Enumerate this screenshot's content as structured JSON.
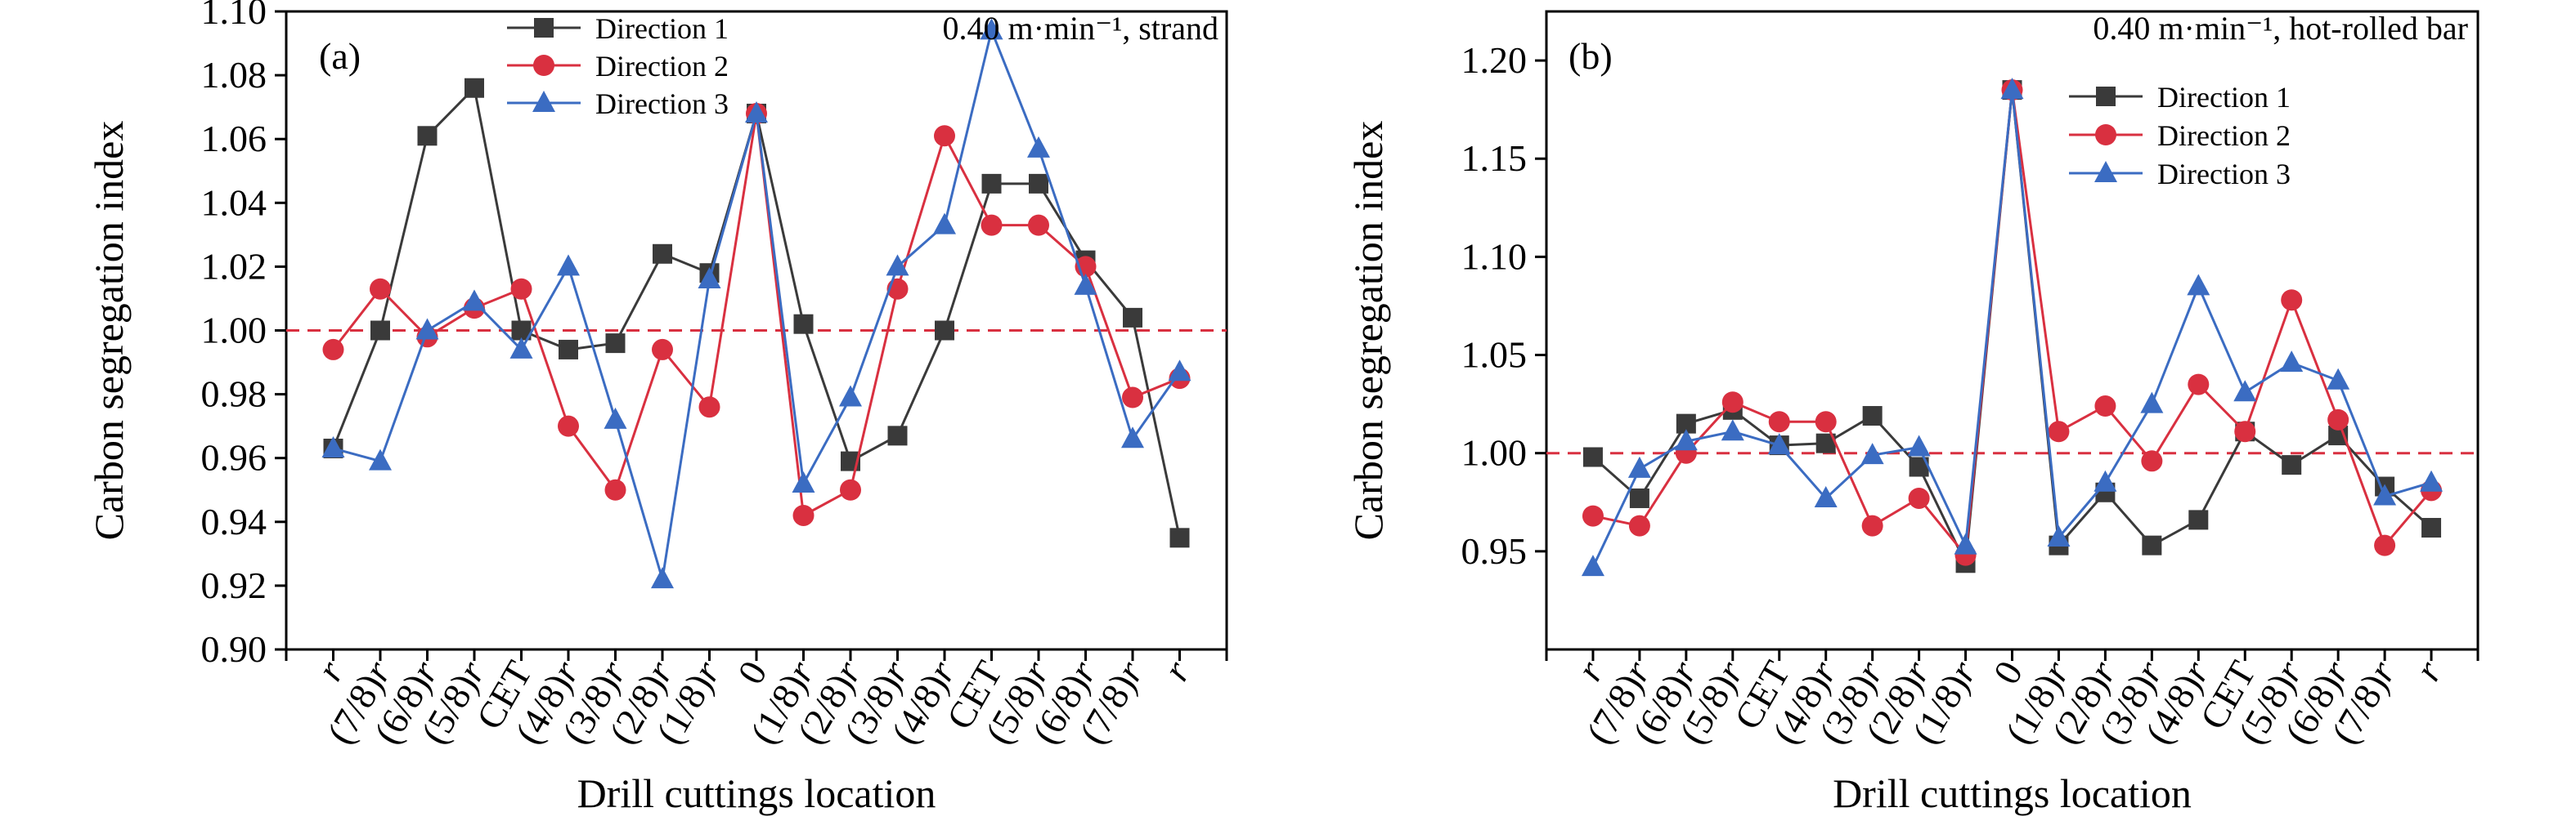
{
  "chart_data": [
    {
      "type": "line",
      "panel_label": "(a)",
      "annotation": "0.40 m·min⁻¹, strand",
      "xlabel": "Drill cuttings location",
      "ylabel": "Carbon segregation index",
      "categories": [
        "r",
        "(7/8)r",
        "(6/8)r",
        "(5/8)r",
        "CET",
        "(4/8)r",
        "(3/8)r",
        "(2/8)r",
        "(1/8)r",
        "0",
        "(1/8)r",
        "(2/8)r",
        "(3/8)r",
        "(4/8)r",
        "CET",
        "(5/8)r",
        "(6/8)r",
        "(7/8)r",
        "r"
      ],
      "italic_r": true,
      "ylim": [
        0.9,
        1.1
      ],
      "yticks": [
        "0.90",
        "0.92",
        "0.94",
        "0.96",
        "0.98",
        "1.00",
        "1.02",
        "1.04",
        "1.06",
        "1.08",
        "1.10"
      ],
      "reference_line": 1.0,
      "legend_position": "top-center",
      "series": [
        {
          "name": "Direction 1",
          "color": "#3a3a3a",
          "marker": "square",
          "values": [
            0.963,
            1.0,
            1.061,
            1.076,
            1.0,
            0.994,
            0.996,
            1.024,
            1.018,
            1.068,
            1.002,
            0.959,
            0.967,
            1.0,
            1.046,
            1.046,
            1.022,
            1.004,
            0.935
          ]
        },
        {
          "name": "Direction 2",
          "color": "#d93040",
          "marker": "circle",
          "values": [
            0.994,
            1.013,
            0.998,
            1.007,
            1.013,
            0.97,
            0.95,
            0.994,
            0.976,
            1.068,
            0.942,
            0.95,
            1.013,
            1.061,
            1.033,
            1.033,
            1.02,
            0.979,
            0.985
          ]
        },
        {
          "name": "Direction 3",
          "color": "#3b6cc2",
          "marker": "triangle",
          "values": [
            0.963,
            0.959,
            1.0,
            1.009,
            0.994,
            1.02,
            0.972,
            0.922,
            1.016,
            1.068,
            0.952,
            0.979,
            1.02,
            1.033,
            1.094,
            1.057,
            1.014,
            0.966,
            0.987
          ]
        }
      ]
    },
    {
      "type": "line",
      "panel_label": "(b)",
      "annotation": "0.40 m·min⁻¹, hot-rolled bar",
      "xlabel": "Drill cuttings location",
      "ylabel": "Carbon segregation index",
      "categories": [
        "r",
        "(7/8)r",
        "(6/8)r",
        "(5/8)r",
        "CET",
        "(4/8)r",
        "(3/8)r",
        "(2/8)r",
        "(1/8)r",
        "0",
        "(1/8)r",
        "(2/8)r",
        "(3/8)r",
        "(4/8)r",
        "CET",
        "(5/8)r",
        "(6/8)r",
        "(7/8)r",
        "r"
      ],
      "italic_r": true,
      "ylim": [
        0.9,
        1.225
      ],
      "yticks": [
        "0.95",
        "1.00",
        "1.05",
        "1.10",
        "1.15",
        "1.20"
      ],
      "reference_line": 1.0,
      "legend_position": "upper-center",
      "series": [
        {
          "name": "Direction 1",
          "color": "#3a3a3a",
          "marker": "square",
          "values": [
            0.998,
            0.977,
            1.015,
            1.022,
            1.004,
            1.005,
            1.019,
            0.993,
            0.944,
            1.185,
            0.953,
            0.98,
            0.953,
            0.966,
            1.011,
            0.994,
            1.009,
            0.983,
            0.962
          ]
        },
        {
          "name": "Direction 2",
          "color": "#d93040",
          "marker": "circle",
          "values": [
            0.968,
            0.963,
            1.0,
            1.026,
            1.016,
            1.016,
            0.963,
            0.977,
            0.948,
            1.185,
            1.011,
            1.024,
            0.996,
            1.035,
            1.011,
            1.078,
            1.017,
            0.953,
            0.981
          ]
        },
        {
          "name": "Direction 3",
          "color": "#3b6cc2",
          "marker": "triangle",
          "values": [
            0.942,
            0.992,
            1.006,
            1.011,
            1.004,
            0.977,
            0.999,
            1.003,
            0.953,
            1.185,
            0.957,
            0.985,
            1.025,
            1.085,
            1.031,
            1.046,
            1.037,
            0.978,
            0.985
          ]
        }
      ]
    }
  ]
}
